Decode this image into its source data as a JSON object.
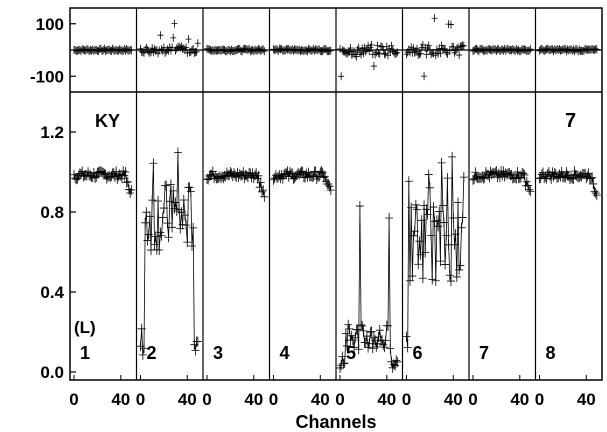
{
  "chart_data": {
    "type": "scatter",
    "xlabel": "Channels",
    "panel_label": "KY",
    "panel_number": "7",
    "panel_tag": "(L)",
    "x_ticks": [
      "0",
      "40"
    ],
    "xlim": [
      0,
      50
    ],
    "top_axis": {
      "ylim": [
        -160,
        160
      ],
      "ticks": [
        {
          "value": 100,
          "label": "100"
        },
        {
          "value": -100,
          "label": "-100"
        }
      ]
    },
    "bottom_axis": {
      "ylim": [
        -0.04,
        1.4
      ],
      "ticks": [
        {
          "value": 0.0,
          "label": "0.0"
        },
        {
          "value": 0.4,
          "label": "0.4"
        },
        {
          "value": 0.8,
          "label": "0.8"
        },
        {
          "value": 1.2,
          "label": "1.2"
        }
      ]
    },
    "channel_groups": [
      {
        "label": "1",
        "kind": "flat"
      },
      {
        "label": "2",
        "kind": "noisy"
      },
      {
        "label": "3",
        "kind": "flat"
      },
      {
        "label": "4",
        "kind": "flat"
      },
      {
        "label": "5",
        "kind": "low"
      },
      {
        "label": "6",
        "kind": "mid"
      },
      {
        "label": "7",
        "kind": "flat"
      },
      {
        "label": "8",
        "kind": "flat"
      }
    ]
  }
}
